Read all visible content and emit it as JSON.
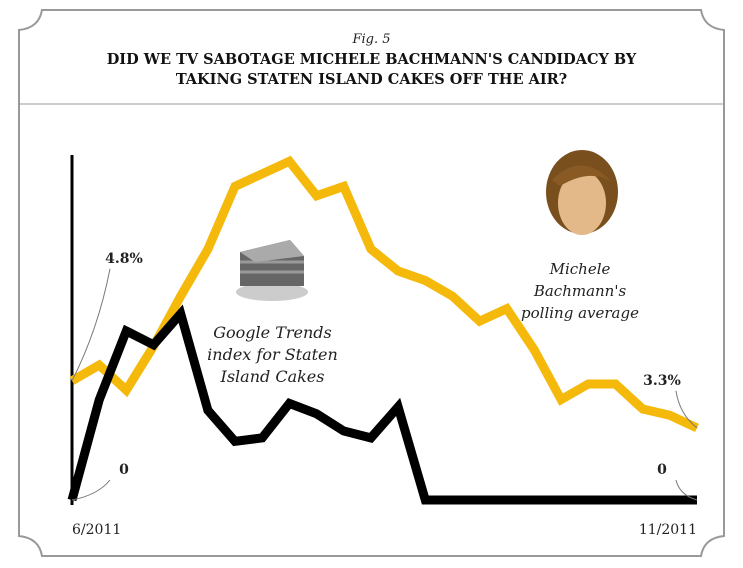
{
  "chart_data": {
    "type": "line",
    "kicker": "Fig. 5",
    "title": "DID WE TV SABOTAGE MICHELE BACHMANN'S CANDIDACY BY TAKING STATEN ISLAND CAKES OFF THE AIR?",
    "categories": [
      "6/2011",
      null,
      null,
      null,
      null,
      null,
      null,
      null,
      null,
      null,
      null,
      null,
      null,
      null,
      null,
      null,
      null,
      null,
      null,
      null,
      null,
      null,
      null,
      "11/2011"
    ],
    "ylim": [
      1,
      12
    ],
    "y2lim": [
      0,
      100
    ],
    "series": [
      {
        "name": "Michele Bachmann's polling average",
        "color": "#f4b90a",
        "values": [
          4.8,
          5.3,
          4.5,
          5.9,
          7.5,
          9.0,
          11.0,
          11.4,
          11.8,
          10.7,
          11.0,
          9.0,
          8.3,
          8.0,
          7.5,
          6.7,
          7.1,
          5.8,
          4.2,
          4.7,
          4.7,
          3.9,
          3.7,
          3.3
        ],
        "value_labels": [
          "4.8%",
          null,
          null,
          null,
          null,
          null,
          null,
          null,
          null,
          null,
          null,
          null,
          null,
          null,
          null,
          null,
          null,
          null,
          null,
          null,
          null,
          null,
          null,
          "3.3%"
        ]
      },
      {
        "name": "Google Trends index for Staten Island Cakes",
        "color": "#000000",
        "axis": "y2",
        "values": [
          0,
          29,
          49,
          45,
          54,
          26,
          17,
          18,
          28,
          25,
          20,
          18,
          27,
          0,
          0,
          0,
          0,
          0,
          0,
          0,
          0,
          0,
          0,
          0
        ]
      }
    ]
  }
}
